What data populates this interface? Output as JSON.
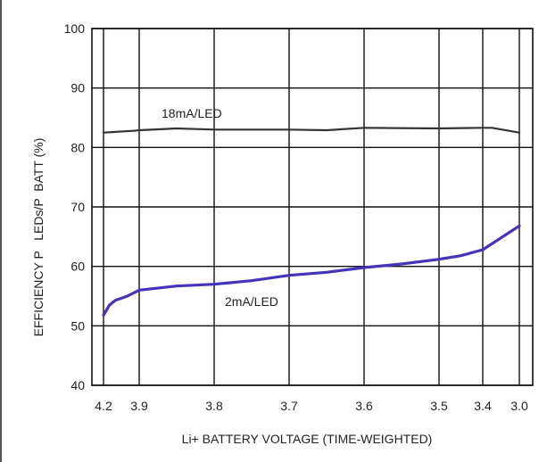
{
  "chart_data": {
    "type": "line",
    "title": "",
    "xlabel": "Li+ BATTERY VOLTAGE (TIME-WEIGHTED)",
    "ylabel": "EFFICIENCY P   LEDs/P  BATT (%)",
    "ylim": [
      40,
      100
    ],
    "xlim": [
      4.2,
      3.0
    ],
    "x_reversed": true,
    "x_scale": "time-weighted (non-linear)",
    "x_ticks": [
      4.2,
      3.9,
      3.8,
      3.7,
      3.6,
      3.5,
      3.4,
      3.0
    ],
    "x_tick_labels": [
      "4.2",
      "3.9",
      "3.8",
      "3.7",
      "3.6",
      "3.5",
      "3.4",
      "3.0"
    ],
    "y_ticks": [
      40,
      50,
      60,
      70,
      80,
      90,
      100
    ],
    "y_tick_labels": [
      "40",
      "50",
      "60",
      "70",
      "80",
      "90",
      "100"
    ],
    "grid": true,
    "legend": "none",
    "series": [
      {
        "name": "18mA/LED",
        "color": "#333333",
        "x": [
          4.2,
          3.95,
          3.9,
          3.85,
          3.8,
          3.7,
          3.65,
          3.6,
          3.5,
          3.4,
          3.3,
          3.0
        ],
        "y": [
          82.5,
          82.8,
          82.9,
          83.2,
          83.0,
          83.0,
          82.9,
          83.3,
          83.2,
          83.3,
          83.3,
          82.5
        ]
      },
      {
        "name": "2mA/LED",
        "color": "#4433bb",
        "x": [
          4.2,
          4.15,
          4.1,
          4.0,
          3.95,
          3.9,
          3.85,
          3.8,
          3.75,
          3.7,
          3.65,
          3.6,
          3.55,
          3.5,
          3.45,
          3.4,
          3.0
        ],
        "y": [
          51.8,
          53.5,
          54.3,
          55.0,
          55.5,
          56.0,
          56.7,
          57.0,
          57.6,
          58.5,
          59.0,
          59.8,
          60.4,
          61.2,
          61.8,
          62.8,
          66.8
        ]
      }
    ]
  }
}
